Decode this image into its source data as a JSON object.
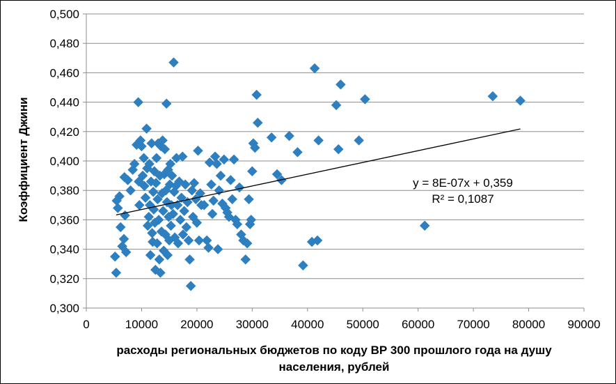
{
  "chart_data": {
    "type": "scatter",
    "title": "",
    "xlabel_lines": [
      "расходы региональных бюджетов по коду ВР 300 прошлого года на душу",
      "населения, рублей"
    ],
    "ylabel": "Коэффициент Джини",
    "xlim": [
      0,
      90000
    ],
    "ylim": [
      0.3,
      0.5
    ],
    "x_ticks": [
      0,
      10000,
      20000,
      30000,
      40000,
      50000,
      60000,
      70000,
      80000,
      90000
    ],
    "x_tick_labels": [
      "0",
      "10000",
      "20000",
      "30000",
      "40000",
      "50000",
      "60000",
      "70000",
      "80000",
      "90000"
    ],
    "y_ticks": [
      0.3,
      0.32,
      0.34,
      0.36,
      0.38,
      0.4,
      0.42,
      0.44,
      0.46,
      0.48,
      0.5
    ],
    "y_tick_labels": [
      "0,300",
      "0,320",
      "0,340",
      "0,360",
      "0,380",
      "0,400",
      "0,420",
      "0,440",
      "0,460",
      "0,480",
      "0,500"
    ],
    "grid": "horizontal",
    "marker": "diamond",
    "marker_color": "#2E7FC0",
    "trendline": {
      "type": "linear",
      "slope": 8e-07,
      "intercept": 0.359,
      "x_range": [
        5400,
        78500
      ],
      "equation_label": "y = 8E-07x + 0,359",
      "r2_label": "R² = 0,1087",
      "color": "#000000"
    },
    "series": [
      {
        "points": [
          [
            5200,
            0.335
          ],
          [
            5400,
            0.324
          ],
          [
            5500,
            0.373
          ],
          [
            5700,
            0.368
          ],
          [
            6000,
            0.376
          ],
          [
            6200,
            0.355
          ],
          [
            6500,
            0.342
          ],
          [
            6800,
            0.347
          ],
          [
            7000,
            0.363
          ],
          [
            7200,
            0.338
          ],
          [
            6900,
            0.389
          ],
          [
            7500,
            0.387
          ],
          [
            8000,
            0.38
          ],
          [
            8400,
            0.394
          ],
          [
            8700,
            0.398
          ],
          [
            9100,
            0.411
          ],
          [
            9400,
            0.44
          ],
          [
            9500,
            0.386
          ],
          [
            9600,
            0.37
          ],
          [
            9800,
            0.414
          ],
          [
            10000,
            0.41
          ],
          [
            10200,
            0.39
          ],
          [
            10400,
            0.402
          ],
          [
            10500,
            0.383
          ],
          [
            10700,
            0.375
          ],
          [
            10900,
            0.422
          ],
          [
            11000,
            0.395
          ],
          [
            11100,
            0.356
          ],
          [
            11300,
            0.362
          ],
          [
            11400,
            0.398
          ],
          [
            11500,
            0.37
          ],
          [
            11600,
            0.336
          ],
          [
            11700,
            0.386
          ],
          [
            11800,
            0.412
          ],
          [
            11900,
            0.351
          ],
          [
            12000,
            0.345
          ],
          [
            12100,
            0.379
          ],
          [
            12200,
            0.367
          ],
          [
            12300,
            0.393
          ],
          [
            12400,
            0.358
          ],
          [
            12500,
            0.326
          ],
          [
            12600,
            0.385
          ],
          [
            12700,
            0.402
          ],
          [
            12800,
            0.344
          ],
          [
            12900,
            0.374
          ],
          [
            13000,
            0.412
          ],
          [
            13100,
            0.36
          ],
          [
            13200,
            0.333
          ],
          [
            13300,
            0.39
          ],
          [
            13400,
            0.324
          ],
          [
            13500,
            0.41
          ],
          [
            13600,
            0.352
          ],
          [
            13700,
            0.378
          ],
          [
            13800,
            0.414
          ],
          [
            13900,
            0.366
          ],
          [
            14000,
            0.339
          ],
          [
            14100,
            0.391
          ],
          [
            14200,
            0.408
          ],
          [
            14300,
            0.35
          ],
          [
            14400,
            0.38
          ],
          [
            14500,
            0.439
          ],
          [
            14600,
            0.372
          ],
          [
            14700,
            0.336
          ],
          [
            14800,
            0.394
          ],
          [
            14900,
            0.362
          ],
          [
            15000,
            0.346
          ],
          [
            15100,
            0.384
          ],
          [
            15200,
            0.398
          ],
          [
            15300,
            0.356
          ],
          [
            15400,
            0.37
          ],
          [
            15500,
            0.39
          ],
          [
            15700,
            0.364
          ],
          [
            15800,
            0.467
          ],
          [
            15900,
            0.379
          ],
          [
            16000,
            0.348
          ],
          [
            16200,
            0.383
          ],
          [
            16300,
            0.402
          ],
          [
            16500,
            0.37
          ],
          [
            16600,
            0.344
          ],
          [
            16800,
            0.386
          ],
          [
            17000,
            0.36
          ],
          [
            17200,
            0.375
          ],
          [
            17400,
            0.403
          ],
          [
            17500,
            0.35
          ],
          [
            17700,
            0.366
          ],
          [
            17900,
            0.384
          ],
          [
            18100,
            0.355
          ],
          [
            18300,
            0.372
          ],
          [
            18500,
            0.346
          ],
          [
            18700,
            0.333
          ],
          [
            18900,
            0.315
          ],
          [
            19100,
            0.38
          ],
          [
            19300,
            0.362
          ],
          [
            19500,
            0.385
          ],
          [
            19800,
            0.374
          ],
          [
            20000,
            0.358
          ],
          [
            20200,
            0.407
          ],
          [
            20400,
            0.346
          ],
          [
            20600,
            0.378
          ],
          [
            20800,
            0.37
          ],
          [
            21300,
            0.37
          ],
          [
            21800,
            0.346
          ],
          [
            22100,
            0.341
          ],
          [
            22300,
            0.399
          ],
          [
            22600,
            0.384
          ],
          [
            22800,
            0.364
          ],
          [
            23000,
            0.373
          ],
          [
            23300,
            0.403
          ],
          [
            23600,
            0.398
          ],
          [
            23800,
            0.34
          ],
          [
            24000,
            0.38
          ],
          [
            24300,
            0.39
          ],
          [
            24600,
            0.371
          ],
          [
            24900,
            0.401
          ],
          [
            25200,
            0.368
          ],
          [
            25500,
            0.365
          ],
          [
            25800,
            0.362
          ],
          [
            26100,
            0.387
          ],
          [
            26400,
            0.374
          ],
          [
            26700,
            0.401
          ],
          [
            27000,
            0.36
          ],
          [
            27300,
            0.357
          ],
          [
            27700,
            0.382
          ],
          [
            28000,
            0.35
          ],
          [
            28400,
            0.346
          ],
          [
            28800,
            0.333
          ],
          [
            29100,
            0.344
          ],
          [
            29400,
            0.374
          ],
          [
            29600,
            0.357
          ],
          [
            29800,
            0.36
          ],
          [
            30000,
            0.393
          ],
          [
            30200,
            0.412
          ],
          [
            30500,
            0.409
          ],
          [
            30800,
            0.445
          ],
          [
            31000,
            0.426
          ],
          [
            33500,
            0.416
          ],
          [
            34500,
            0.391
          ],
          [
            35300,
            0.387
          ],
          [
            36700,
            0.417
          ],
          [
            38200,
            0.406
          ],
          [
            39200,
            0.329
          ],
          [
            40800,
            0.345
          ],
          [
            41300,
            0.463
          ],
          [
            41800,
            0.346
          ],
          [
            42000,
            0.414
          ],
          [
            45200,
            0.438
          ],
          [
            45600,
            0.408
          ],
          [
            46000,
            0.452
          ],
          [
            49300,
            0.414
          ],
          [
            50400,
            0.442
          ],
          [
            61200,
            0.356
          ],
          [
            73500,
            0.444
          ],
          [
            78500,
            0.441
          ]
        ]
      }
    ]
  }
}
